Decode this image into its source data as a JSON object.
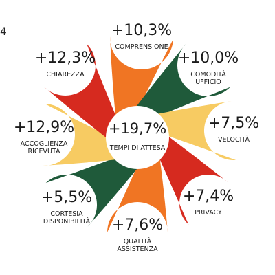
{
  "edge_fragment": "4",
  "center": {
    "value": "+19,7%",
    "label": [
      "TEMPI DI ATTESA"
    ]
  },
  "petals": [
    {
      "id": "comprensione",
      "value": "+10,3%",
      "label": [
        "COMPRENSIONE"
      ],
      "color": "#f07523"
    },
    {
      "id": "comodita-ufficio",
      "value": "+10,0%",
      "label": [
        "COMODITÀ",
        "UFFICIO"
      ],
      "color": "#1f5a3a"
    },
    {
      "id": "velocita",
      "value": "+7,5%",
      "label": [
        "VELOCITÀ"
      ],
      "color": "#f7cb62"
    },
    {
      "id": "privacy",
      "value": "+7,4%",
      "label": [
        "PRIVACY"
      ],
      "color": "#d62a1f"
    },
    {
      "id": "qualita-assistenza",
      "value": "+7,6%",
      "label": [
        "QUALITÀ",
        "ASSISTENZA"
      ],
      "color": "#f07523"
    },
    {
      "id": "cortesia-disponibilita",
      "value": "+5,5%",
      "label": [
        "CORTESIA",
        "DISPONIBILITÀ"
      ],
      "color": "#1f5a3a"
    },
    {
      "id": "accoglienza-ricevuta",
      "value": "+12,9%",
      "label": [
        "ACCOGLIENZA",
        "RICEVUTA"
      ],
      "color": "#f7cb62"
    },
    {
      "id": "chiarezza",
      "value": "+12,3%",
      "label": [
        "CHIAREZZA"
      ],
      "color": "#d62a1f"
    }
  ]
}
